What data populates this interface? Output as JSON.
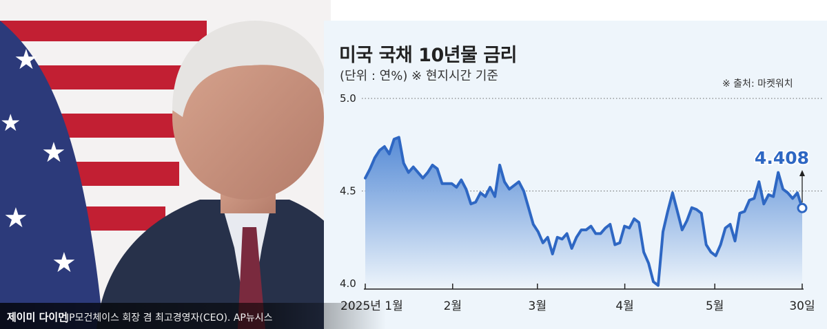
{
  "chart_data": {
    "type": "area",
    "title": "미국 국채 10년물 금리",
    "subtitle": "(단위 : 연%) ※ 현지시간 기준",
    "source": "※ 출처: 마켓워치",
    "unit": "연%",
    "ylim": [
      4.0,
      5.0
    ],
    "y_ticks": [
      "5.0",
      "4.5",
      "4.0"
    ],
    "x_ticks": [
      "2025년 1월",
      "2월",
      "3월",
      "4월",
      "5월",
      "30일"
    ],
    "grid": "dotted horizontal at 5.0 and 4.5",
    "annotation": {
      "label": "4.408",
      "value": 4.408
    },
    "series": [
      {
        "values": [
          4.57,
          4.62,
          4.68,
          4.72,
          4.74,
          4.7,
          4.78,
          4.79,
          4.65,
          4.6,
          4.63,
          4.6,
          4.57,
          4.6,
          4.64,
          4.62,
          4.54,
          4.54,
          4.54,
          4.52,
          4.56,
          4.51,
          4.43,
          4.44,
          4.49,
          4.47,
          4.52,
          4.47,
          4.64,
          4.55,
          4.51,
          4.53,
          4.55,
          4.5,
          4.41,
          4.32,
          4.28,
          4.22,
          4.25,
          4.16,
          4.25,
          4.24,
          4.27,
          4.19,
          4.25,
          4.29,
          4.29,
          4.31,
          4.27,
          4.27,
          4.3,
          4.32,
          4.21,
          4.22,
          4.31,
          4.3,
          4.35,
          4.33,
          4.17,
          4.11,
          4.01,
          3.99,
          4.28,
          4.39,
          4.49,
          4.39,
          4.29,
          4.34,
          4.41,
          4.4,
          4.38,
          4.21,
          4.17,
          4.15,
          4.21,
          4.3,
          4.32,
          4.23,
          4.38,
          4.39,
          4.45,
          4.46,
          4.55,
          4.43,
          4.48,
          4.47,
          4.6,
          4.51,
          4.49,
          4.46,
          4.49,
          4.408
        ]
      }
    ]
  },
  "caption": {
    "name": "제이미 다이먼",
    "description": "JP모건체이스 회장 겸 최고경영자(CEO). AP뉴시스"
  },
  "colors": {
    "line": "#2e67c3",
    "fill_top": "#4f86d4",
    "fill_bottom": "#eef5fb",
    "panel": "#eef5fb",
    "flag_red": "#c21f33",
    "flag_blue": "#2c3a7a"
  }
}
